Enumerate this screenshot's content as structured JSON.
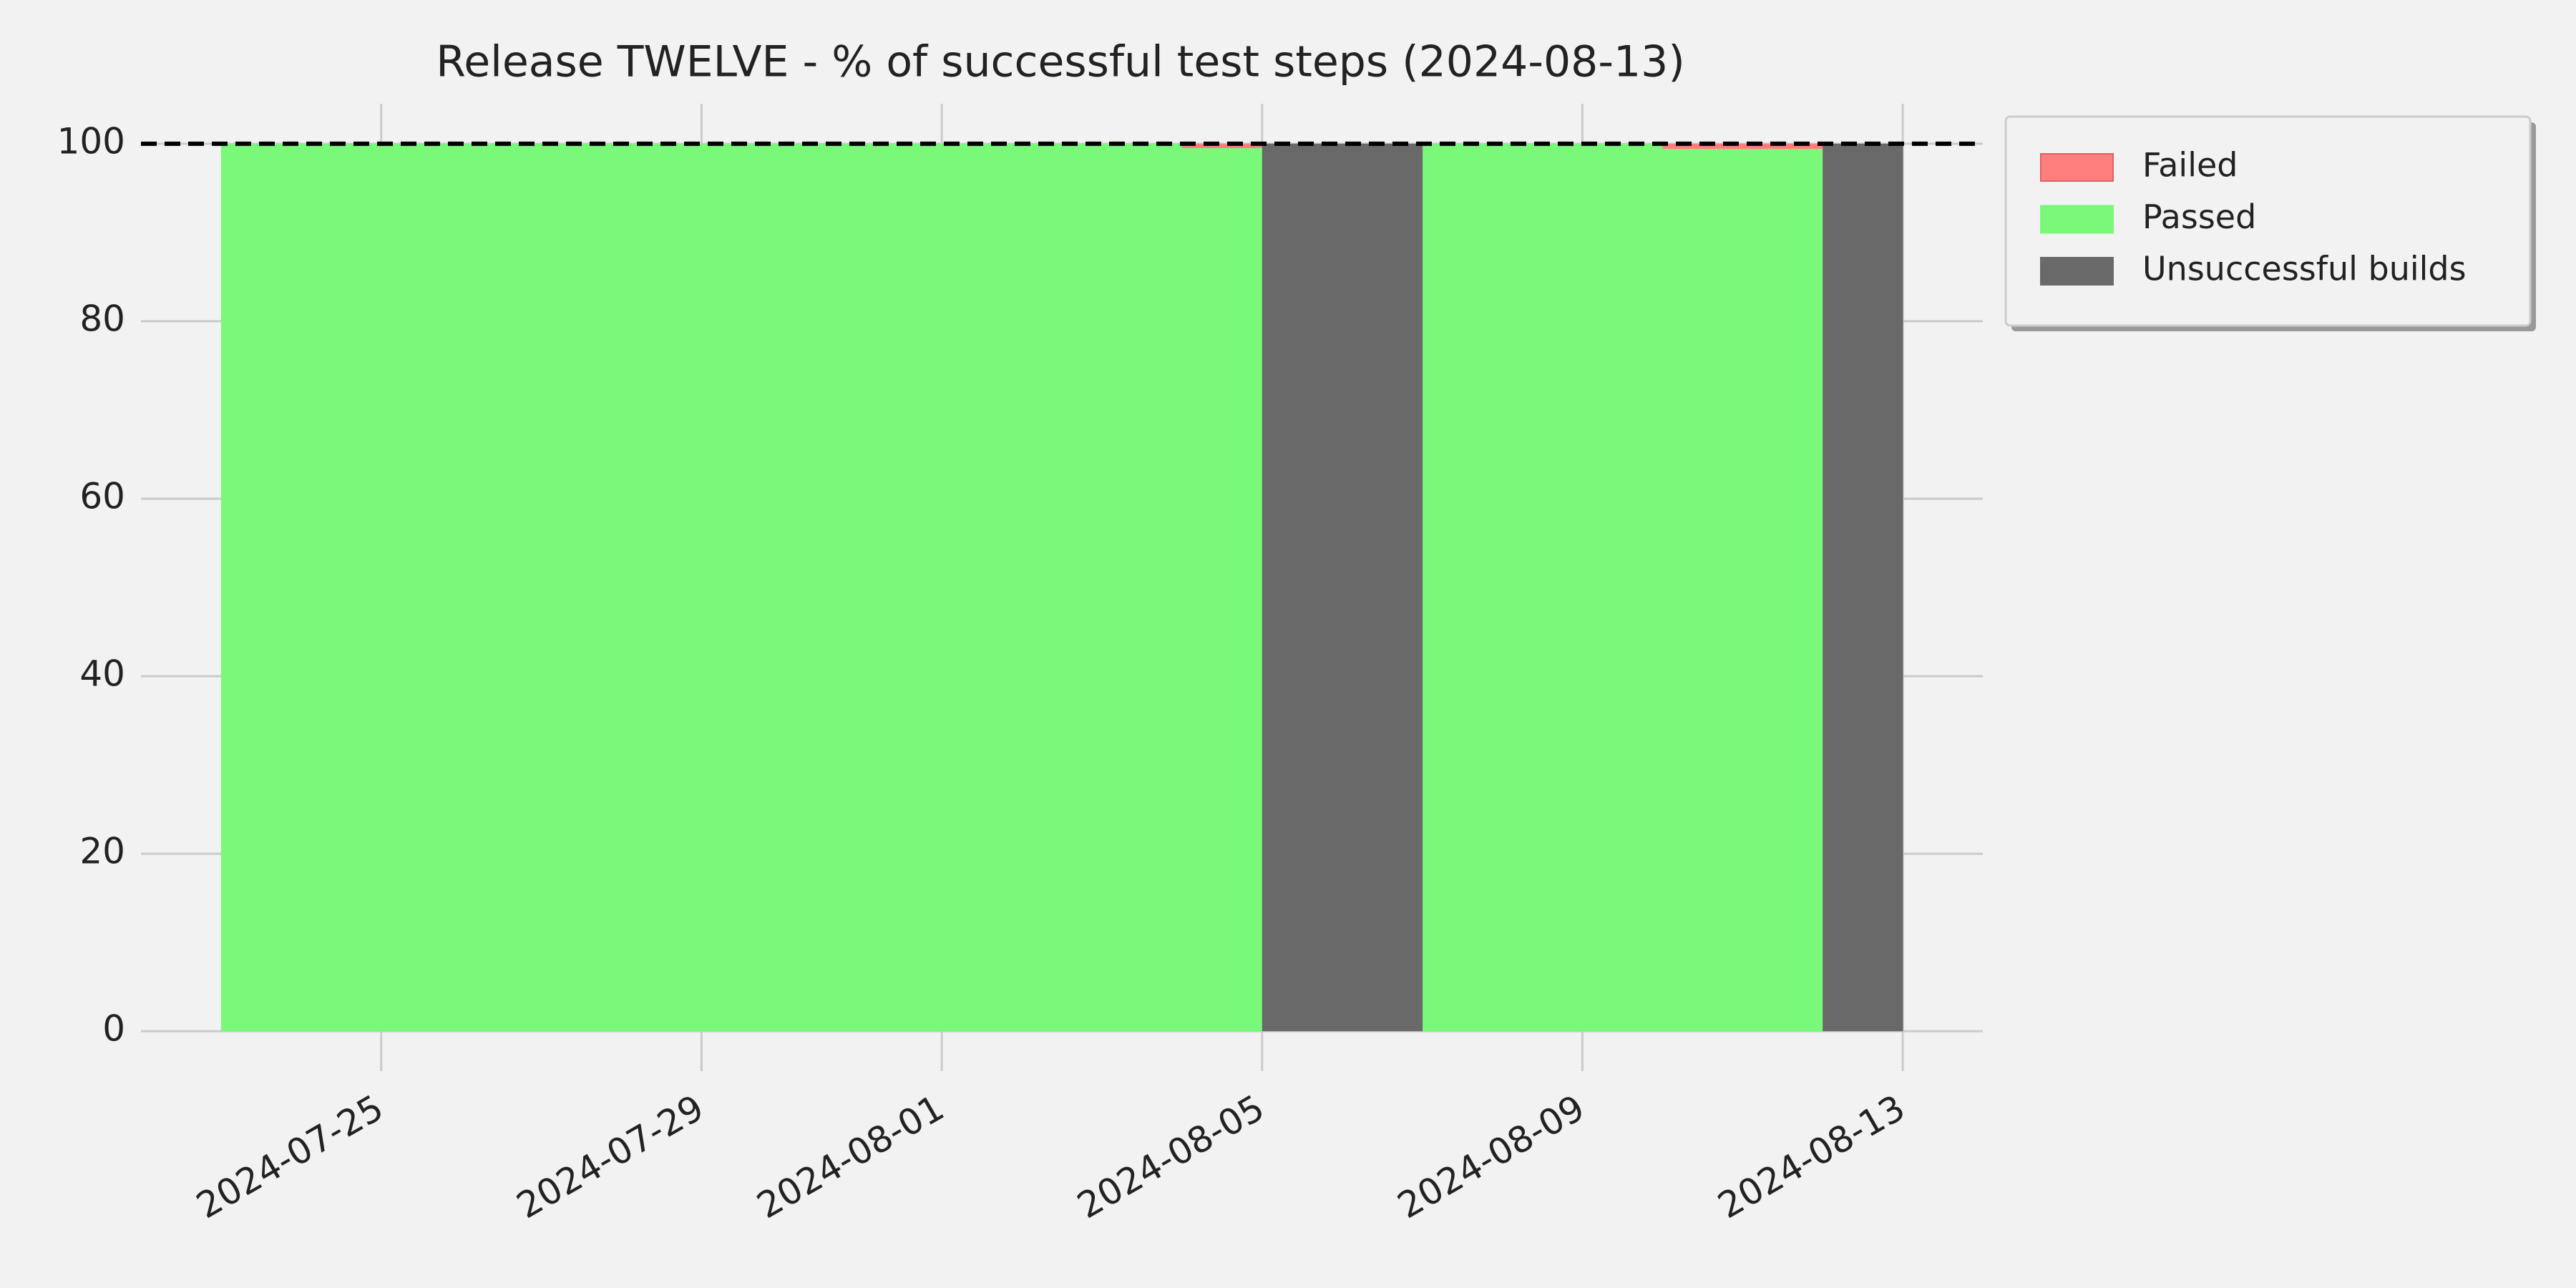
{
  "chart_data": {
    "type": "stacked_area_step",
    "title": "Release TWELVE - % of successful test steps (2024-08-13)",
    "x": [
      "2024-07-23",
      "2024-07-24",
      "2024-07-25",
      "2024-07-26",
      "2024-07-27",
      "2024-07-28",
      "2024-07-29",
      "2024-07-30",
      "2024-07-31",
      "2024-08-01",
      "2024-08-02",
      "2024-08-03",
      "2024-08-04",
      "2024-08-05",
      "2024-08-06",
      "2024-08-07",
      "2024-08-08",
      "2024-08-09",
      "2024-08-10",
      "2024-08-11",
      "2024-08-12",
      "2024-08-13"
    ],
    "series": [
      {
        "name": "Passed",
        "color": "#79f879",
        "values": [
          100,
          100,
          100,
          100,
          100,
          100,
          100,
          100,
          100,
          100,
          100,
          100,
          99.5,
          0,
          0,
          100,
          100,
          100,
          99.4,
          99.4,
          0,
          null
        ]
      },
      {
        "name": "Failed",
        "color": "#ff7f7f",
        "values": [
          0,
          0,
          0,
          0,
          0,
          0,
          0,
          0,
          0,
          0,
          0,
          0,
          0.5,
          0,
          0,
          0,
          0,
          0,
          0.6,
          0.6,
          0,
          null
        ]
      },
      {
        "name": "Unsuccessful builds",
        "color": "#696969",
        "values": [
          0,
          0,
          0,
          0,
          0,
          0,
          0,
          0,
          0,
          0,
          0,
          0,
          0,
          100,
          100,
          0,
          0,
          0,
          0,
          0,
          100,
          null
        ]
      }
    ],
    "legend_order": [
      1,
      0,
      2
    ],
    "xlim": [
      "2024-07-22",
      "2024-08-14"
    ],
    "xticks": [
      "2024-07-25",
      "2024-07-29",
      "2024-08-01",
      "2024-08-05",
      "2024-08-09",
      "2024-08-13"
    ],
    "ylim": [
      -4.5,
      104.5
    ],
    "yticks": [
      0,
      20,
      40,
      60,
      80,
      100
    ],
    "threshold": 100,
    "grid": true,
    "legend": "outside upper right"
  }
}
